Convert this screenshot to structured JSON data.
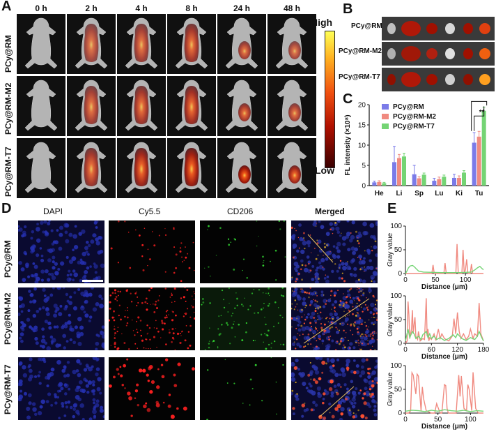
{
  "panels": {
    "A": {
      "letter": "A",
      "time_points": [
        "0 h",
        "2 h",
        "4 h",
        "8 h",
        "24 h",
        "48 h"
      ],
      "groups": [
        "PCy@RM",
        "PCy@RM-M2",
        "PCy@RM-T7"
      ],
      "colorbar": {
        "high": "High",
        "low": "Low"
      },
      "signal": [
        [
          0,
          0.65,
          0.7,
          0.75,
          0.3,
          0.25
        ],
        [
          0,
          0.7,
          0.75,
          0.8,
          0.35,
          0.3
        ],
        [
          0,
          0.75,
          0.85,
          0.9,
          0.55,
          0.45
        ]
      ]
    },
    "B": {
      "letter": "B",
      "groups": [
        "PCy@RM",
        "PCy@RM-M2",
        "PCy@RM-T7"
      ]
    },
    "C": {
      "letter": "C"
    },
    "D": {
      "letter": "D",
      "channels": [
        "DAPI",
        "Cy5.5",
        "CD206",
        "Merged"
      ],
      "groups": [
        "PCy@RM",
        "PCy@RM-M2",
        "PCy@RM-T7"
      ]
    },
    "E": {
      "letter": "E"
    }
  },
  "chart_data": [
    {
      "type": "bar",
      "categories": [
        "He",
        "Li",
        "Sp",
        "Lu",
        "Ki",
        "Tu"
      ],
      "series": [
        {
          "name": "PCy@RM",
          "values": [
            0.8,
            5.8,
            2.8,
            1.2,
            1.9,
            10.6
          ],
          "errors": [
            0.3,
            3.9,
            2.2,
            0.6,
            0.9,
            2.5
          ]
        },
        {
          "name": "PCy@RM-M2",
          "values": [
            0.9,
            6.8,
            1.8,
            1.6,
            1.9,
            12.1
          ],
          "errors": [
            0.3,
            0.9,
            0.4,
            0.5,
            0.5,
            1.3
          ]
        },
        {
          "name": "PCy@RM-T7",
          "values": [
            0.6,
            7.2,
            2.7,
            2.2,
            3.2,
            18.5
          ],
          "errors": [
            0.2,
            0.8,
            0.4,
            0.4,
            0.5,
            0.9
          ]
        }
      ],
      "ylabel": "FL intensity (×10⁸)",
      "ylim": [
        0,
        20
      ],
      "yticks": [
        0,
        5,
        10,
        15,
        20
      ],
      "significance": [
        "*",
        "**"
      ],
      "colors": [
        "#7b7be8",
        "#f08a80",
        "#74d474"
      ],
      "legend": "top-left"
    },
    {
      "type": "line",
      "ylabel": "Gray value",
      "xlabel": "Distance (μm)",
      "xlim": [
        0,
        130
      ],
      "xticks": [
        0,
        50,
        100
      ],
      "ylim": [
        0,
        100
      ],
      "yticks": [
        0,
        50,
        100
      ],
      "series": [
        {
          "channel": "Cy5.5",
          "color": "#f08a80",
          "x": [
            0,
            40,
            44,
            46,
            48,
            60,
            64,
            66,
            68,
            80,
            84,
            86,
            88,
            90,
            94,
            96,
            98,
            100,
            102,
            104,
            108,
            110,
            112,
            130
          ],
          "y": [
            0,
            0,
            0,
            18,
            0,
            0,
            0,
            22,
            0,
            0,
            0,
            62,
            0,
            0,
            0,
            50,
            0,
            8,
            30,
            0,
            0,
            20,
            0,
            0
          ]
        },
        {
          "channel": "CD206",
          "color": "#74d474",
          "x": [
            0,
            2,
            5,
            8,
            12,
            15,
            18,
            22,
            30,
            60,
            90,
            110,
            116,
            120,
            124,
            128,
            130
          ],
          "y": [
            0,
            4,
            12,
            16,
            17,
            14,
            10,
            5,
            3,
            2,
            2,
            3,
            8,
            12,
            15,
            10,
            8
          ]
        }
      ]
    },
    {
      "type": "line",
      "ylabel": "Gray value",
      "xlabel": "Distance (μm)",
      "xlim": [
        0,
        180
      ],
      "xticks": [
        0,
        60,
        120,
        180
      ],
      "ylim": [
        0,
        100
      ],
      "yticks": [
        0,
        50,
        100
      ],
      "series": [
        {
          "channel": "Cy5.5",
          "color": "#f08a80",
          "x": [
            0,
            4,
            6,
            8,
            10,
            14,
            16,
            18,
            20,
            22,
            24,
            28,
            30,
            34,
            40,
            44,
            48,
            50,
            52,
            54,
            56,
            60,
            66,
            70,
            76,
            80,
            84,
            90,
            100,
            108,
            112,
            116,
            120,
            124,
            128,
            134,
            140,
            146,
            150,
            156,
            160,
            166,
            170,
            174,
            180
          ],
          "y": [
            0,
            5,
            88,
            60,
            10,
            30,
            70,
            20,
            40,
            55,
            15,
            8,
            25,
            5,
            10,
            8,
            95,
            15,
            30,
            5,
            12,
            8,
            20,
            6,
            30,
            10,
            20,
            10,
            5,
            15,
            52,
            20,
            65,
            25,
            10,
            20,
            8,
            15,
            30,
            10,
            20,
            15,
            85,
            20,
            5
          ]
        },
        {
          "channel": "CD206",
          "color": "#74d474",
          "x": [
            0,
            6,
            10,
            16,
            20,
            24,
            30,
            36,
            40,
            48,
            52,
            56,
            60,
            66,
            72,
            80,
            90,
            100,
            110,
            116,
            120,
            130,
            140,
            150,
            160,
            166,
            170,
            176,
            180
          ],
          "y": [
            5,
            30,
            12,
            25,
            20,
            10,
            15,
            8,
            18,
            25,
            12,
            20,
            10,
            15,
            8,
            12,
            6,
            10,
            18,
            12,
            20,
            10,
            6,
            12,
            8,
            15,
            25,
            12,
            5
          ]
        }
      ]
    },
    {
      "type": "line",
      "ylabel": "Gray value",
      "xlabel": "Distance (μm)",
      "xlim": [
        0,
        120
      ],
      "xticks": [
        0,
        50,
        100
      ],
      "ylim": [
        0,
        100
      ],
      "yticks": [
        0,
        50,
        100
      ],
      "series": [
        {
          "channel": "Cy5.5",
          "color": "#f08a80",
          "x": [
            0,
            5,
            8,
            10,
            12,
            16,
            18,
            20,
            24,
            26,
            28,
            32,
            40,
            45,
            48,
            52,
            54,
            56,
            60,
            62,
            64,
            66,
            70,
            78,
            82,
            84,
            86,
            90,
            94,
            96,
            98,
            102,
            104,
            108,
            112,
            120
          ],
          "y": [
            0,
            0,
            5,
            85,
            80,
            40,
            82,
            78,
            5,
            55,
            30,
            5,
            0,
            0,
            20,
            5,
            0,
            0,
            60,
            58,
            10,
            0,
            0,
            0,
            80,
            35,
            78,
            10,
            5,
            60,
            50,
            5,
            86,
            10,
            0,
            0
          ]
        },
        {
          "channel": "CD206",
          "color": "#74d474",
          "x": [
            0,
            10,
            20,
            30,
            40,
            50,
            60,
            70,
            80,
            90,
            100,
            110,
            120
          ],
          "y": [
            4,
            6,
            5,
            3,
            6,
            4,
            7,
            5,
            4,
            6,
            3,
            5,
            4
          ]
        }
      ]
    }
  ]
}
